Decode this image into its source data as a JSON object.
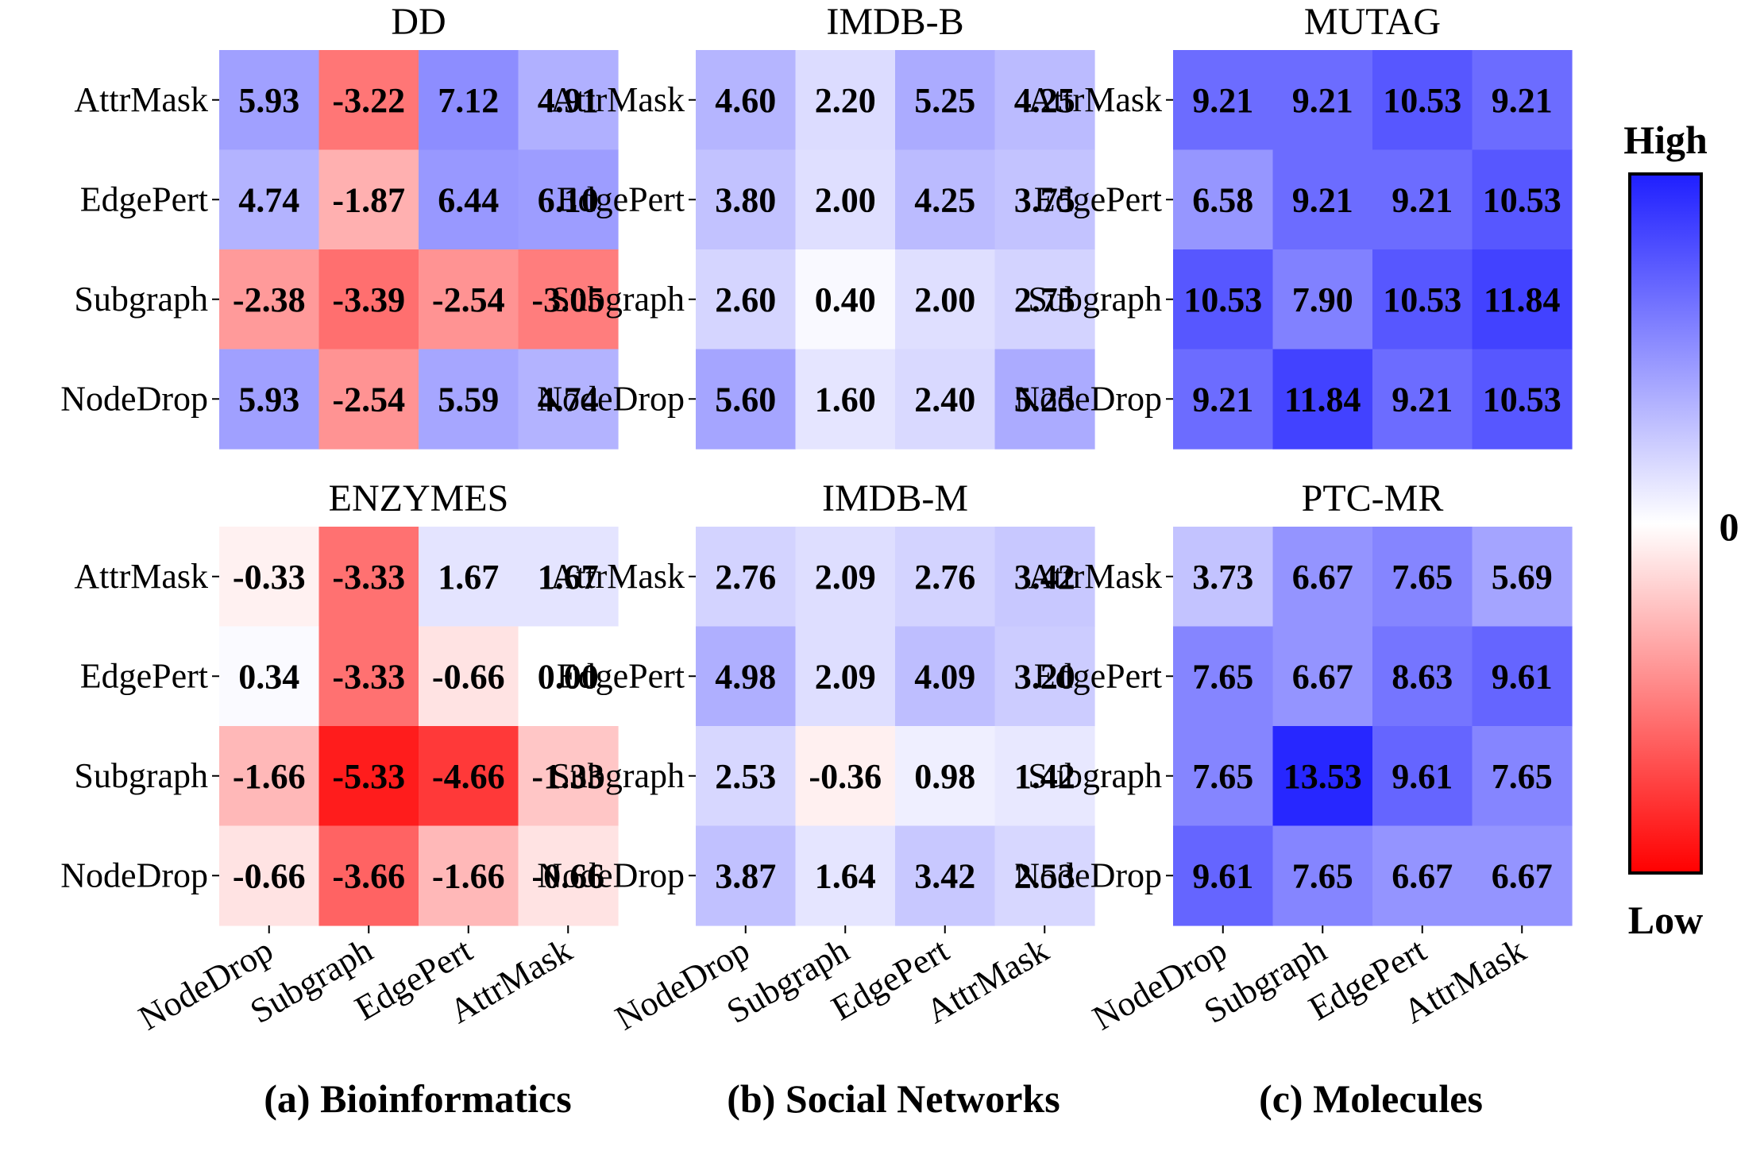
{
  "chart_data": [
    {
      "type": "heatmap",
      "title": "DD",
      "rows": [
        "AttrMask",
        "EdgePert",
        "Subgraph",
        "NodeDrop"
      ],
      "cols": [
        "NodeDrop",
        "Subgraph",
        "EdgePert",
        "AttrMask"
      ],
      "values": [
        [
          "5.93",
          "-3.22",
          "7.12",
          "4.91"
        ],
        [
          "4.74",
          "-1.87",
          "6.44",
          "6.10"
        ],
        [
          "-2.38",
          "-3.39",
          "-2.54",
          "-3.05"
        ],
        [
          "5.93",
          "-2.54",
          "5.59",
          "4.74"
        ]
      ]
    },
    {
      "type": "heatmap",
      "title": "IMDB-B",
      "rows": [
        "AttrMask",
        "EdgePert",
        "Subgraph",
        "NodeDrop"
      ],
      "cols": [
        "NodeDrop",
        "Subgraph",
        "EdgePert",
        "AttrMask"
      ],
      "values": [
        [
          "4.60",
          "2.20",
          "5.25",
          "4.25"
        ],
        [
          "3.80",
          "2.00",
          "4.25",
          "3.75"
        ],
        [
          "2.60",
          "0.40",
          "2.00",
          "2.75"
        ],
        [
          "5.60",
          "1.60",
          "2.40",
          "5.25"
        ]
      ]
    },
    {
      "type": "heatmap",
      "title": "MUTAG",
      "rows": [
        "AttrMask",
        "EdgePert",
        "Subgraph",
        "NodeDrop"
      ],
      "cols": [
        "NodeDrop",
        "Subgraph",
        "EdgePert",
        "AttrMask"
      ],
      "values": [
        [
          "9.21",
          "9.21",
          "10.53",
          "9.21"
        ],
        [
          "6.58",
          "9.21",
          "9.21",
          "10.53"
        ],
        [
          "10.53",
          "7.90",
          "10.53",
          "11.84"
        ],
        [
          "9.21",
          "11.84",
          "9.21",
          "10.53"
        ]
      ]
    },
    {
      "type": "heatmap",
      "title": "ENZYMES",
      "rows": [
        "AttrMask",
        "EdgePert",
        "Subgraph",
        "NodeDrop"
      ],
      "cols": [
        "NodeDrop",
        "Subgraph",
        "EdgePert",
        "AttrMask"
      ],
      "values": [
        [
          "-0.33",
          "-3.33",
          "1.67",
          "1.67"
        ],
        [
          "0.34",
          "-3.33",
          "-0.66",
          "0.00"
        ],
        [
          "-1.66",
          "-5.33",
          "-4.66",
          "-1.33"
        ],
        [
          "-0.66",
          "-3.66",
          "-1.66",
          "-0.66"
        ]
      ]
    },
    {
      "type": "heatmap",
      "title": "IMDB-M",
      "rows": [
        "AttrMask",
        "EdgePert",
        "Subgraph",
        "NodeDrop"
      ],
      "cols": [
        "NodeDrop",
        "Subgraph",
        "EdgePert",
        "AttrMask"
      ],
      "values": [
        [
          "2.76",
          "2.09",
          "2.76",
          "3.42"
        ],
        [
          "4.98",
          "2.09",
          "4.09",
          "3.20"
        ],
        [
          "2.53",
          "-0.36",
          "0.98",
          "1.42"
        ],
        [
          "3.87",
          "1.64",
          "3.42",
          "2.53"
        ]
      ]
    },
    {
      "type": "heatmap",
      "title": "PTC-MR",
      "rows": [
        "AttrMask",
        "EdgePert",
        "Subgraph",
        "NodeDrop"
      ],
      "cols": [
        "NodeDrop",
        "Subgraph",
        "EdgePert",
        "AttrMask"
      ],
      "values": [
        [
          "3.73",
          "6.67",
          "7.65",
          "5.69"
        ],
        [
          "7.65",
          "6.67",
          "8.63",
          "9.61"
        ],
        [
          "7.65",
          "13.53",
          "9.61",
          "7.65"
        ],
        [
          "9.61",
          "7.65",
          "6.67",
          "6.67"
        ]
      ]
    }
  ],
  "captions": [
    "(a) Bioinformatics",
    "(b) Social Networks",
    "(c) Molecules"
  ],
  "colorbar": {
    "high_label": "High",
    "mid_label": "0",
    "low_label": "Low",
    "high_color": "#1f1fff",
    "mid_color": "#ffffff",
    "low_color": "#ff0000",
    "vmin": -6,
    "vmax": 14
  }
}
